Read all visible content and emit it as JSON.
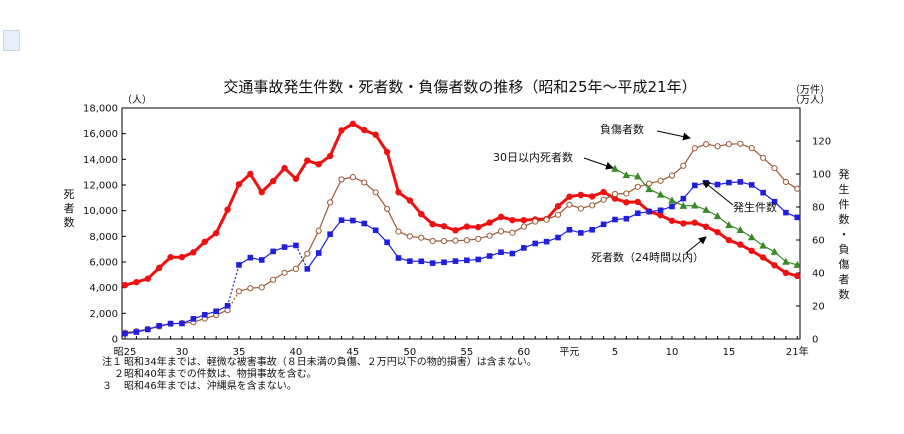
{
  "notes": [
    {
      "no": "注１",
      "text": "昭和34年までは、軽微な被害事故（８日未満の負傷、２万円以下の物的損害）は含まない。"
    },
    {
      "no": "２",
      "text": "昭和40年までの件数は、物損事故を含む。"
    },
    {
      "no": "３",
      "text": "昭和46年までは、沖縄県を含まない。"
    }
  ],
  "chart_data": {
    "type": "line",
    "title": "交通事故発生件数・死者数・負傷者数の推移（昭和25年～平成21年）",
    "left_axis": {
      "label": "死者数",
      "unit": "（人）",
      "range": [
        0,
        18000
      ],
      "ticks": [
        "0",
        "2,000",
        "4,000",
        "6,000",
        "8,000",
        "10,000",
        "12,000",
        "14,000",
        "16,000",
        "18,000"
      ]
    },
    "right_axis": {
      "label": "発生件数・負傷者数",
      "unit_top": "（万件）",
      "unit_bottom": "（万人）",
      "range": [
        0,
        140
      ],
      "ticks": [
        "0",
        "20",
        "40",
        "60",
        "80",
        "100",
        "120"
      ]
    },
    "x_tick_labels": [
      {
        "year": 1950,
        "label": "昭25"
      },
      {
        "year": 1955,
        "label": "30"
      },
      {
        "year": 1960,
        "label": "35"
      },
      {
        "year": 1965,
        "label": "40"
      },
      {
        "year": 1970,
        "label": "45"
      },
      {
        "year": 1975,
        "label": "50"
      },
      {
        "year": 1980,
        "label": "55"
      },
      {
        "year": 1985,
        "label": "60"
      },
      {
        "year": 1989,
        "label": "平元"
      },
      {
        "year": 1993,
        "label": "5"
      },
      {
        "year": 1998,
        "label": "10"
      },
      {
        "year": 2003,
        "label": "15"
      },
      {
        "year": 2009,
        "label": "21年"
      }
    ],
    "x_start": 1950,
    "series": [
      {
        "name": "死者数（24時間以内）",
        "axis": "left",
        "color": "#ee1111",
        "marker": "circle",
        "values": [
          4202,
          4429,
          4696,
          5544,
          6374,
          6379,
          6751,
          7575,
          8248,
          10079,
          12055,
          12865,
          11445,
          12301,
          13318,
          12484,
          13904,
          13618,
          14256,
          16257,
          16765,
          16278,
          15918,
          14574,
          11432,
          10792,
          9734,
          8945,
          8783,
          8466,
          8760,
          8719,
          9073,
          9520,
          9262,
          9261,
          9317,
          9347,
          10344,
          11086,
          11227,
          11109,
          11451,
          10942,
          10649,
          10684,
          9942,
          9640,
          9211,
          9006,
          9066,
          8747,
          8326,
          7702,
          7358,
          6871,
          6352,
          5744,
          5155,
          4914
        ]
      },
      {
        "name": "負傷者数",
        "axis": "right",
        "color": "#9b5a34",
        "marker": "open-circle",
        "values": [
          3.9,
          4.7,
          6.0,
          7.6,
          9.3,
          9.6,
          10.2,
          12.4,
          14.5,
          17.5,
          28.9,
          30.8,
          31.3,
          35.9,
          40.1,
          42.5,
          51.7,
          65.6,
          82.8,
          96.7,
          98.1,
          94.9,
          88.9,
          78.9,
          65.1,
          62.2,
          61.4,
          59.4,
          59.4,
          59.6,
          59.9,
          60.7,
          62.6,
          65.3,
          64.4,
          68.1,
          71.2,
          72.3,
          75.3,
          81.4,
          79.1,
          81.0,
          84.4,
          87.9,
          88.2,
          92.2,
          94.2,
          95.9,
          99.0,
          105.0,
          115.6,
          118.1,
          116.8,
          118.1,
          118.3,
          115.7,
          109.8,
          103.5,
          95.2,
          91.1
        ]
      },
      {
        "name": "発生件数",
        "axis": "right",
        "color": "#1f1fdd",
        "marker": "square",
        "values": [
          3.3,
          4.2,
          5.8,
          8.0,
          9.3,
          9.4,
          12.2,
          14.7,
          16.8,
          20.1,
          44.9,
          49.3,
          47.9,
          53.1,
          55.7,
          56.7,
          42.5,
          52.1,
          63.5,
          72.0,
          71.8,
          70.0,
          65.9,
          58.6,
          49.1,
          47.2,
          47.1,
          46.0,
          46.5,
          47.2,
          47.7,
          48.2,
          50.3,
          52.6,
          51.8,
          55.2,
          57.9,
          59.0,
          61.5,
          66.2,
          64.3,
          66.2,
          69.5,
          72.4,
          72.9,
          76.2,
          77.2,
          78.0,
          80.3,
          85.1,
          93.1,
          94.7,
          93.6,
          94.8,
          95.2,
          93.4,
          88.7,
          83.2,
          76.6,
          73.7
        ]
      },
      {
        "name": "30日以内死者数",
        "axis": "left",
        "color": "#3a8a2a",
        "marker": "triangle",
        "x_start": 1993,
        "values": [
          13269,
          12768,
          12670,
          11674,
          11254,
          10805,
          10372,
          10403,
          10060,
          9575,
          8877,
          8492,
          7931,
          7272,
          6796,
          6023,
          5772
        ]
      }
    ],
    "annotations": [
      "負傷者数",
      "30日以内死者数",
      "発生件数",
      "死者数（24時間以内）"
    ]
  }
}
